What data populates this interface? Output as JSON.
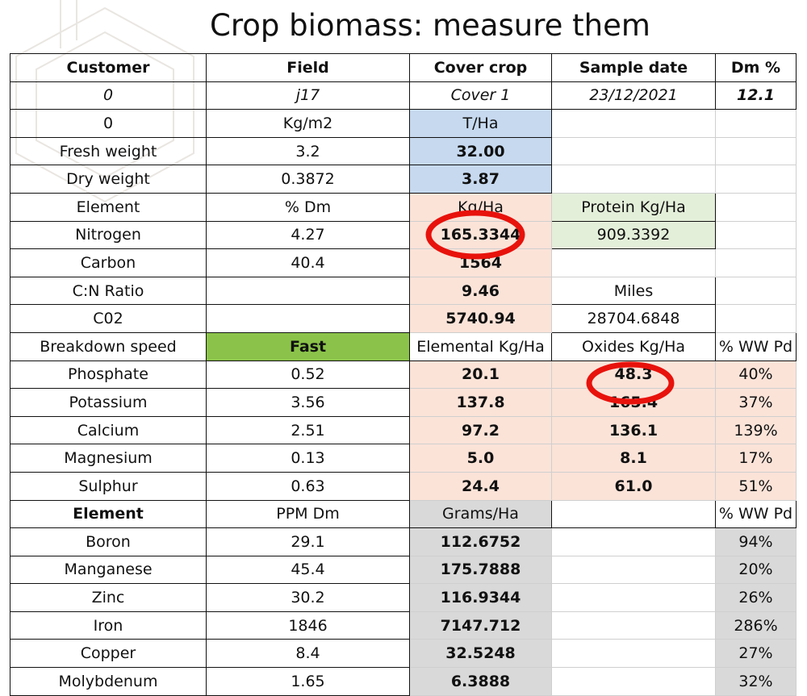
{
  "title": "Crop biomass: measure them",
  "table": {
    "header": {
      "customer": "Customer",
      "field": "Field",
      "cover_crop": "Cover crop",
      "sample_date": "Sample date",
      "dm_pct": "Dm %"
    },
    "info": {
      "customer": "0",
      "field": "j17",
      "cover_crop": "Cover 1",
      "sample_date": "23/12/2021",
      "dm_pct": "12.1"
    },
    "units": {
      "label": "0",
      "per_m2": "Kg/m2",
      "per_ha": "T/Ha"
    },
    "fresh": {
      "label": "Fresh weight",
      "kgm2": "3.2",
      "tha": "32.00"
    },
    "dry": {
      "label": "Dry weight",
      "kgm2": "0.3872",
      "tha": "3.87"
    },
    "element_head": {
      "label": "Element",
      "dm": "% Dm",
      "kgha": "Kg/Ha",
      "protein": "Protein Kg/Ha"
    },
    "nitrogen": {
      "label": "Nitrogen",
      "dm": "4.27",
      "kgha": "165.3344",
      "protein": "909.3392"
    },
    "carbon": {
      "label": "Carbon",
      "dm": "40.4",
      "kgha": "1564"
    },
    "cn": {
      "label": "C:N Ratio",
      "value": "9.46",
      "miles_label": "Miles"
    },
    "co2": {
      "label": "C02",
      "value": "5740.94",
      "miles": "28704.6848"
    },
    "breakdown": {
      "label": "Breakdown speed",
      "speed": "Fast",
      "elemental": "Elemental Kg/Ha",
      "oxides": "Oxides Kg/Ha",
      "ww": "% WW Pd"
    },
    "macro": [
      {
        "name": "Phosphate",
        "dm": "0.52",
        "elemental": "20.1",
        "oxides": "48.3",
        "ww": "40%"
      },
      {
        "name": "Potassium",
        "dm": "3.56",
        "elemental": "137.8",
        "oxides": "165.4",
        "ww": "37%"
      },
      {
        "name": "Calcium",
        "dm": "2.51",
        "elemental": "97.2",
        "oxides": "136.1",
        "ww": "139%"
      },
      {
        "name": "Magnesium",
        "dm": "0.13",
        "elemental": "5.0",
        "oxides": "8.1",
        "ww": "17%"
      },
      {
        "name": "Sulphur",
        "dm": "0.63",
        "elemental": "24.4",
        "oxides": "61.0",
        "ww": "51%"
      }
    ],
    "micro_head": {
      "label": "Element",
      "ppm": "PPM Dm",
      "grams": "Grams/Ha",
      "ww": "% WW Pd"
    },
    "micro": [
      {
        "name": "Boron",
        "ppm": "29.1",
        "grams": "112.6752",
        "ww": "94%"
      },
      {
        "name": "Manganese",
        "ppm": "45.4",
        "grams": "175.7888",
        "ww": "20%"
      },
      {
        "name": "Zinc",
        "ppm": "30.2",
        "grams": "116.9344",
        "ww": "26%"
      },
      {
        "name": "Iron",
        "ppm": "1846",
        "grams": "7147.712",
        "ww": "286%"
      },
      {
        "name": "Copper",
        "ppm": "8.4",
        "grams": "32.5248",
        "ww": "27%"
      },
      {
        "name": "Molybdenum",
        "ppm": "1.65",
        "grams": "6.3888",
        "ww": "32%"
      }
    ]
  },
  "colors": {
    "header_blue": "#c6d9ef",
    "pink": "#fbe3d8",
    "green": "#e4efda",
    "fast_green": "#8bc34a",
    "grey": "#d9d9d9",
    "circle_red": "#e8120c"
  }
}
